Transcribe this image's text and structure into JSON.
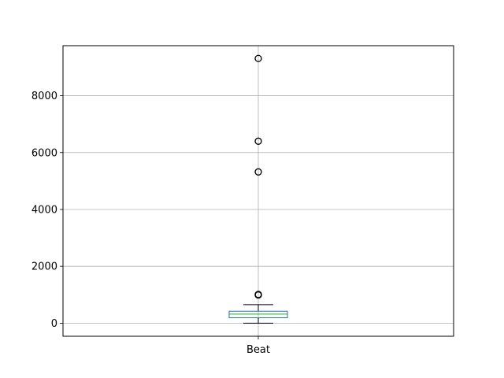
{
  "chart_data": {
    "type": "box",
    "categories": [
      "Beat"
    ],
    "ylim": [
      -460,
      9760
    ],
    "yticks": [
      0,
      2000,
      4000,
      6000,
      8000
    ],
    "ytick_labels": [
      "0",
      "2000",
      "4000",
      "6000",
      "8000"
    ],
    "grid": true,
    "boxes": [
      {
        "name": "Beat",
        "whisker_low": 0,
        "q1": 190,
        "median": 320,
        "q3": 420,
        "whisker_high": 650,
        "outliers": [
          990,
          1000,
          1010,
          5320,
          6400,
          9310
        ]
      }
    ],
    "colors": {
      "box": "#1f77b4",
      "median": "#2ca02c",
      "whisker": "#000000",
      "grid": "#b0b0b0"
    }
  }
}
